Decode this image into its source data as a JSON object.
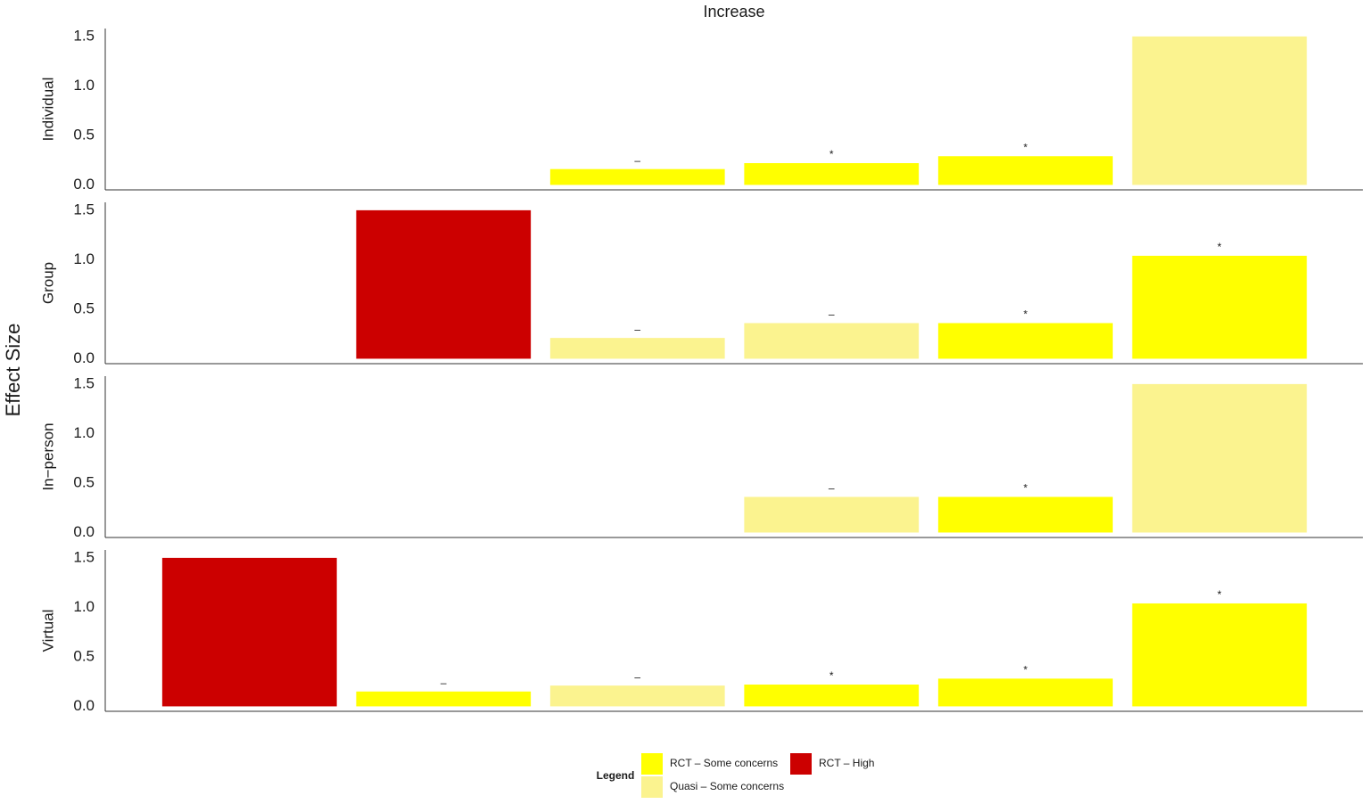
{
  "figure": {
    "title": "Increase",
    "y_label": "Effect Size",
    "legend_title": "Legend"
  },
  "chart_data": [
    {
      "type": "bar",
      "title": "Individual",
      "categories": [
        null,
        null,
        null,
        null,
        null,
        null
      ],
      "series": [
        {
          "name": "RCT – Some concerns",
          "color": "#ffff00",
          "values": [
            null,
            null,
            0.16,
            0.22,
            0.29,
            null
          ]
        },
        {
          "name": "RCT – High",
          "color": "#cc0000",
          "values": [
            null,
            null,
            null,
            null,
            null,
            null
          ]
        },
        {
          "name": "Quasi – Some concerns",
          "color": "#fbf38f",
          "values": [
            null,
            null,
            null,
            null,
            null,
            1.5
          ]
        }
      ],
      "annotations": [
        null,
        null,
        "–",
        "*",
        "*",
        null
      ],
      "ylim": [
        -0.05,
        1.58
      ],
      "yticks": [
        {
          "value": 0,
          "label": "0.0"
        },
        0.5,
        {
          "value": 1,
          "label": "1.0"
        },
        1.5
      ],
      "grid": false
    },
    {
      "type": "bar",
      "title": "Group",
      "categories": [
        null,
        null,
        null,
        null,
        null,
        null
      ],
      "series": [
        {
          "name": "RCT – Some concerns",
          "color": "#ffff00",
          "values": [
            null,
            null,
            null,
            null,
            0.36,
            1.04
          ]
        },
        {
          "name": "RCT – High",
          "color": "#cc0000",
          "values": [
            null,
            1.5,
            null,
            null,
            null,
            null
          ]
        },
        {
          "name": "Quasi – Some concerns",
          "color": "#fbf38f",
          "values": [
            null,
            null,
            0.21,
            0.36,
            null,
            null
          ]
        }
      ],
      "annotations": [
        null,
        null,
        "–",
        "–",
        "*",
        "*"
      ],
      "ylim": [
        -0.05,
        1.58
      ],
      "yticks": [
        {
          "value": 0,
          "label": "0.0"
        },
        0.5,
        {
          "value": 1,
          "label": "1.0"
        },
        1.5
      ],
      "grid": false
    },
    {
      "type": "bar",
      "title": "In−person",
      "categories": [
        null,
        null,
        null,
        null,
        null,
        null
      ],
      "series": [
        {
          "name": "RCT – Some concerns",
          "color": "#ffff00",
          "values": [
            null,
            null,
            null,
            null,
            0.36,
            null
          ]
        },
        {
          "name": "RCT – High",
          "color": "#cc0000",
          "values": [
            null,
            null,
            null,
            null,
            null,
            null
          ]
        },
        {
          "name": "Quasi – Some concerns",
          "color": "#fbf38f",
          "values": [
            null,
            null,
            null,
            0.36,
            null,
            1.5
          ]
        }
      ],
      "annotations": [
        null,
        null,
        null,
        "–",
        "*",
        null
      ],
      "ylim": [
        -0.05,
        1.58
      ],
      "yticks": [
        {
          "value": 0,
          "label": "0.0"
        },
        0.5,
        {
          "value": 1,
          "label": "1.0"
        },
        1.5
      ],
      "grid": false
    },
    {
      "type": "bar",
      "title": "Virtual",
      "categories": [
        null,
        null,
        null,
        null,
        null,
        null
      ],
      "series": [
        {
          "name": "RCT – Some concerns",
          "color": "#ffff00",
          "values": [
            null,
            0.15,
            null,
            0.22,
            0.28,
            1.04
          ]
        },
        {
          "name": "RCT – High",
          "color": "#cc0000",
          "values": [
            1.5,
            null,
            null,
            null,
            null,
            null
          ]
        },
        {
          "name": "Quasi – Some concerns",
          "color": "#fbf38f",
          "values": [
            null,
            null,
            0.21,
            null,
            null,
            null
          ]
        }
      ],
      "annotations": [
        null,
        "–",
        "–",
        "*",
        "*",
        "*"
      ],
      "ylim": [
        -0.05,
        1.58
      ],
      "yticks": [
        {
          "value": 0,
          "label": "0.0"
        },
        0.5,
        {
          "value": 1,
          "label": "1.0"
        },
        1.5
      ],
      "grid": false
    }
  ]
}
